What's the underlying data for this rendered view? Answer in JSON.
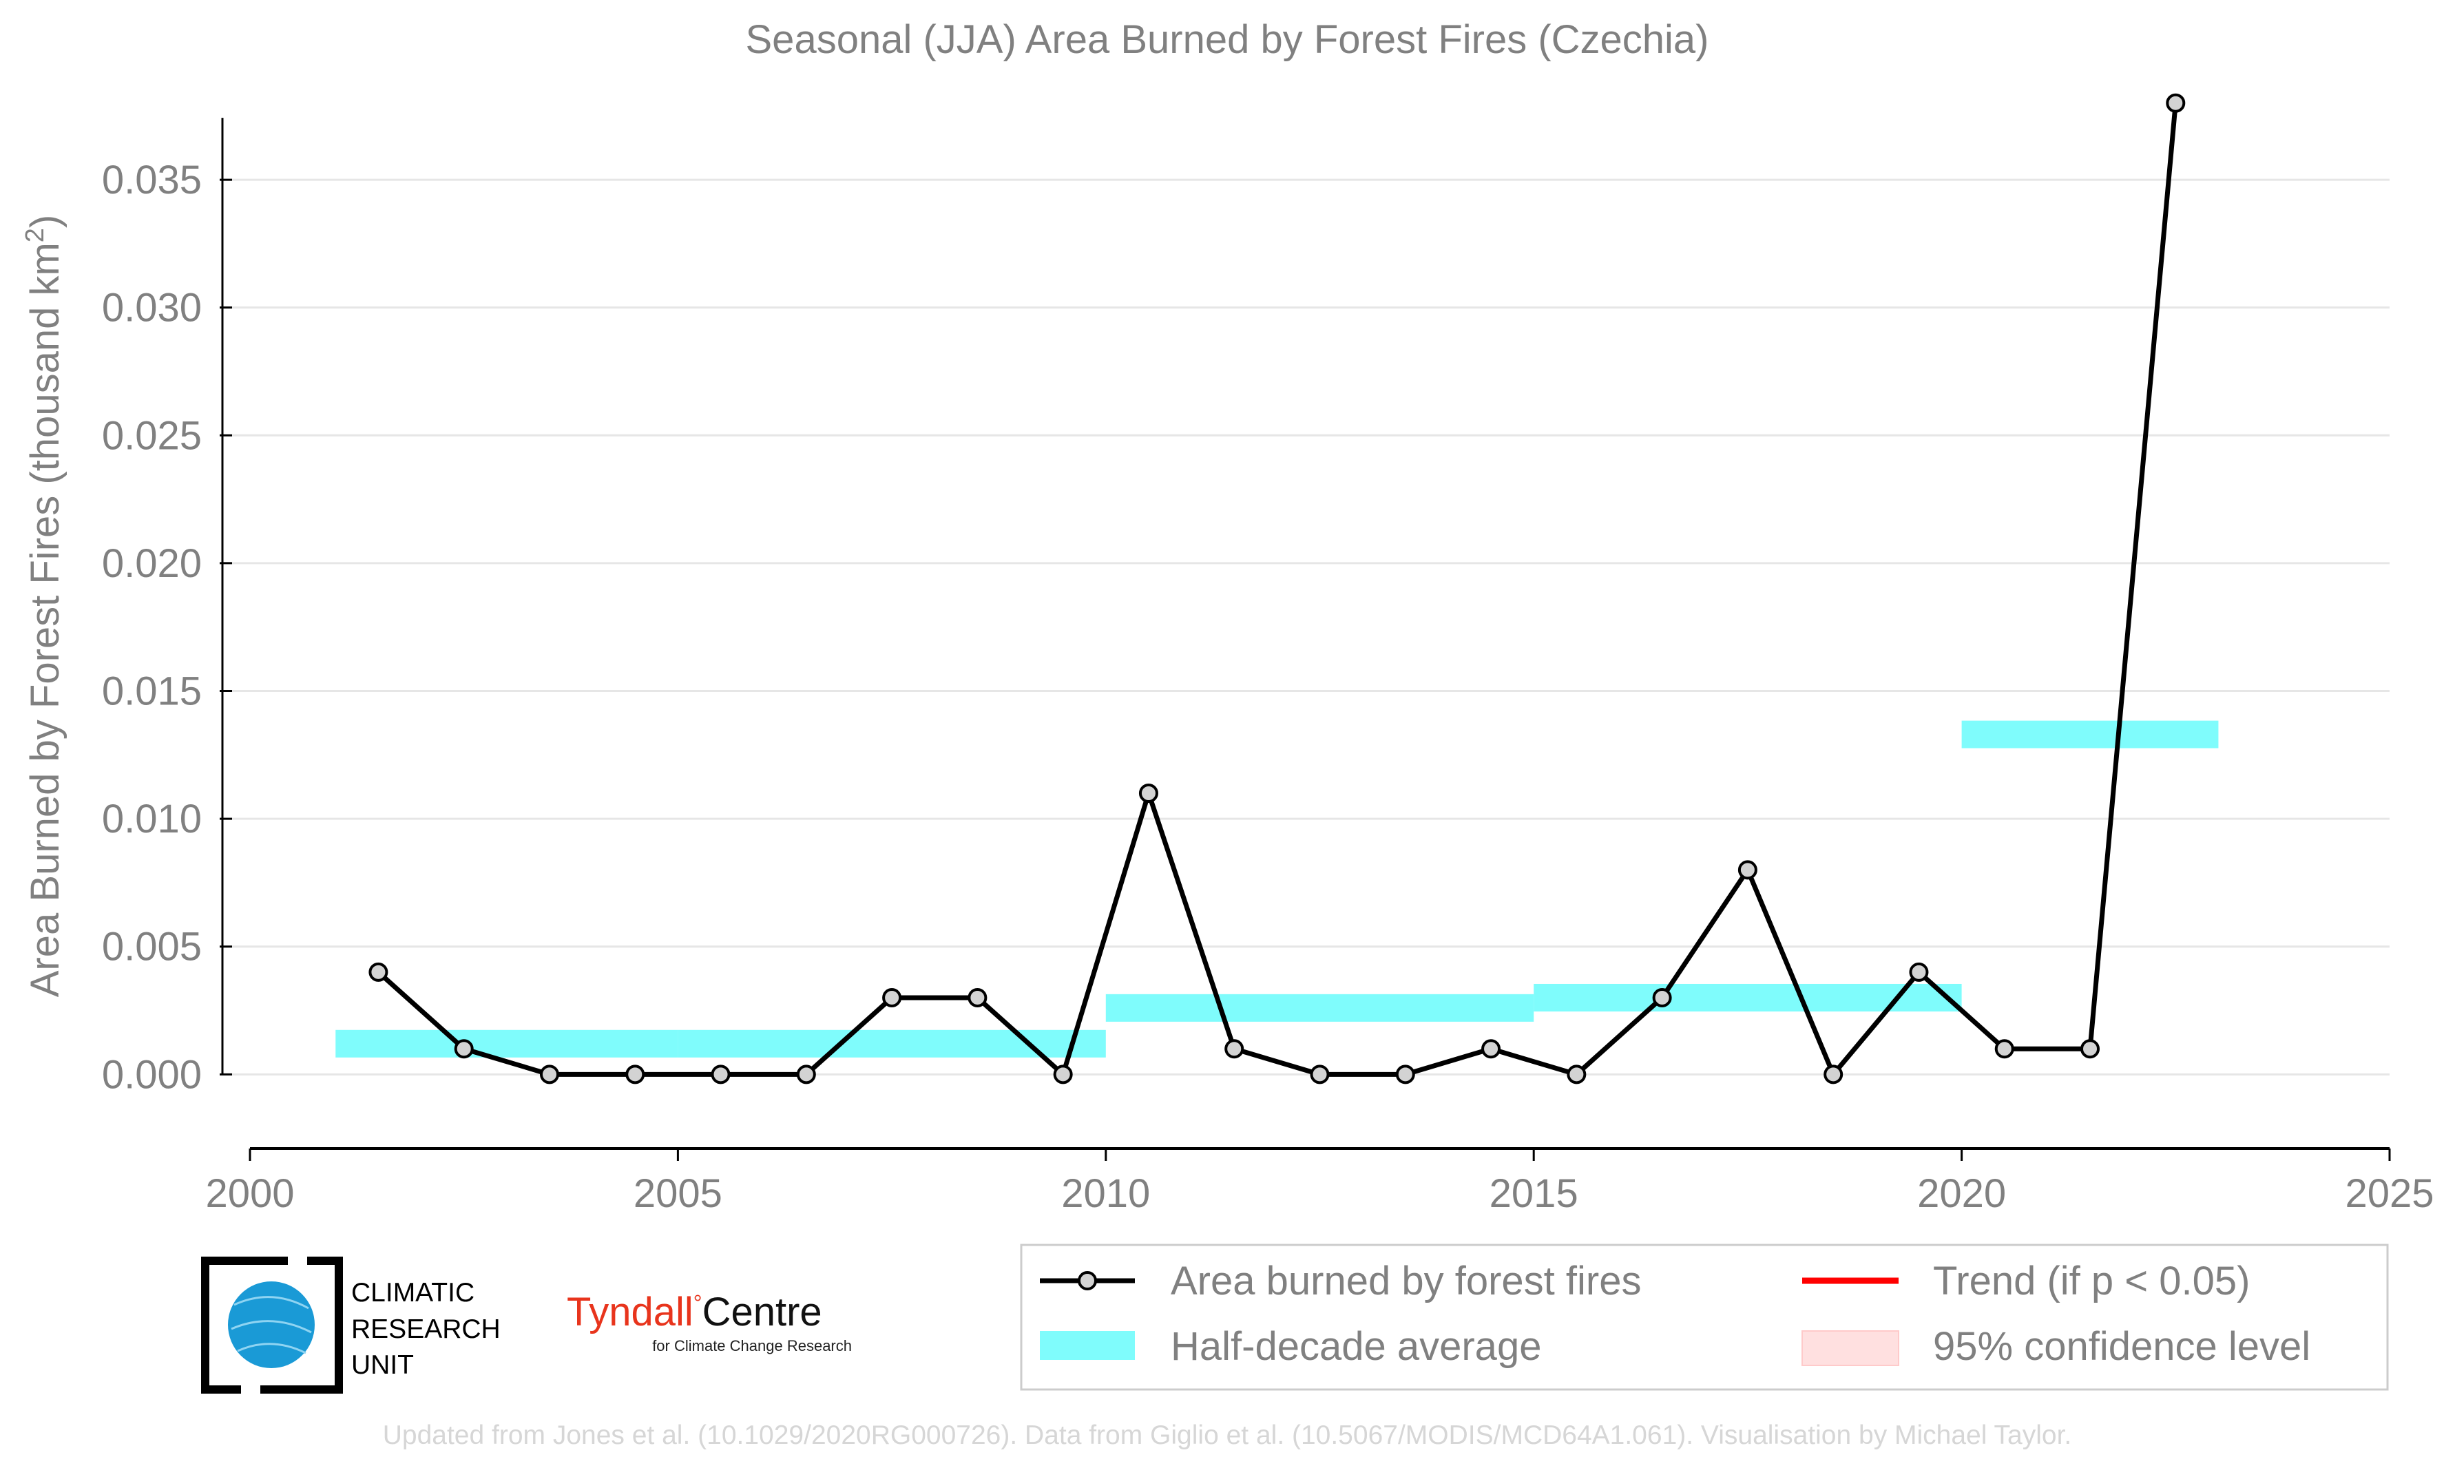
{
  "chart_data": {
    "type": "line",
    "title": "Seasonal (JJA) Area Burned by Forest Fires (Czechia)",
    "ylabel": "Area Burned by Forest Fires (thousand km²)",
    "xlabel": "",
    "xlim": [
      2000,
      2025
    ],
    "ylim": [
      -0.0029,
      0.0388
    ],
    "x_ticks": [
      2000,
      2005,
      2010,
      2015,
      2020,
      2025
    ],
    "y_ticks": [
      0.0,
      0.005,
      0.01,
      0.015,
      0.02,
      0.025,
      0.03,
      0.035
    ],
    "y_tick_labels": [
      "0.000",
      "0.005",
      "0.010",
      "0.015",
      "0.020",
      "0.025",
      "0.030",
      "0.035"
    ],
    "grid": "horizontal",
    "series": [
      {
        "name": "Area burned by forest fires",
        "color": "#000000",
        "marker_fill": "#d3d3d3",
        "x": [
          2001.5,
          2002.5,
          2003.5,
          2004.5,
          2005.5,
          2006.5,
          2007.5,
          2008.5,
          2009.5,
          2010.5,
          2011.5,
          2012.5,
          2013.5,
          2014.5,
          2015.5,
          2016.5,
          2017.5,
          2018.5,
          2019.5,
          2020.5,
          2021.5,
          2022.5
        ],
        "values": [
          0.004,
          0.001,
          0.0,
          0.0,
          0.0,
          0.0,
          0.003,
          0.003,
          0.0,
          0.011,
          0.001,
          0.0,
          0.0,
          0.001,
          0.0,
          0.003,
          0.008,
          0.0,
          0.004,
          0.001,
          0.001,
          0.038
        ]
      }
    ],
    "half_decade_averages": {
      "name": "Half-decade average",
      "color": "#7ffcfc",
      "segments": [
        {
          "x_start": 2001,
          "x_end": 2005,
          "value": 0.0012
        },
        {
          "x_start": 2005,
          "x_end": 2010,
          "value": 0.0012
        },
        {
          "x_start": 2010,
          "x_end": 2015,
          "value": 0.0026
        },
        {
          "x_start": 2015,
          "x_end": 2020,
          "value": 0.003
        },
        {
          "x_start": 2020,
          "x_end": 2023,
          "value": 0.0133
        }
      ]
    },
    "legend": {
      "placement": "bottom-right",
      "entries": [
        {
          "label": "Area burned by forest fires",
          "kind": "line-marker",
          "color": "#000000"
        },
        {
          "label": "Trend (if p < 0.05)",
          "kind": "line",
          "color": "#ff0000"
        },
        {
          "label": "Half-decade average",
          "kind": "band",
          "color": "#7ffcfc"
        },
        {
          "label": "95% confidence level",
          "kind": "band",
          "color": "#ffe0e0"
        }
      ]
    }
  },
  "logos": {
    "cru_lines": [
      "CLIMATIC",
      "RESEARCH",
      "UNIT"
    ],
    "tyndall_main_a": "Tyndall",
    "tyndall_main_b": "Centre",
    "tyndall_sub": "for Climate Change Research"
  },
  "credit": "Updated from Jones et al. (10.1029/2020RG000726). Data from Giglio et al. (10.5067/MODIS/MCD64A1.061). Visualisation by Michael Taylor."
}
